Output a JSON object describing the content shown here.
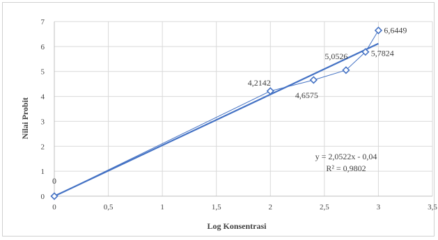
{
  "chart_data": {
    "type": "scatter",
    "title": "",
    "xlabel": "Log Konsentrasi",
    "ylabel": "Nilai Probit",
    "xlim": [
      0,
      3.5
    ],
    "ylim": [
      0,
      7
    ],
    "x_ticks": [
      {
        "value": 0,
        "label": "0"
      },
      {
        "value": 0.5,
        "label": "0,5"
      },
      {
        "value": 1,
        "label": "1"
      },
      {
        "value": 1.5,
        "label": "1,5"
      },
      {
        "value": 2,
        "label": "2"
      },
      {
        "value": 2.5,
        "label": "2,5"
      },
      {
        "value": 3,
        "label": "3"
      },
      {
        "value": 3.5,
        "label": "3,5"
      }
    ],
    "y_ticks": [
      {
        "value": 0,
        "label": "0"
      },
      {
        "value": 1,
        "label": "1"
      },
      {
        "value": 2,
        "label": "2"
      },
      {
        "value": 3,
        "label": "3"
      },
      {
        "value": 4,
        "label": "4"
      },
      {
        "value": 5,
        "label": "5"
      },
      {
        "value": 6,
        "label": "6"
      },
      {
        "value": 7,
        "label": "7"
      }
    ],
    "grid": true,
    "points": [
      {
        "x": 0,
        "y": 0,
        "label": "0"
      },
      {
        "x": 2,
        "y": 4.2142,
        "label": "4,2142"
      },
      {
        "x": 2.4,
        "y": 4.6575,
        "label": "4,6575"
      },
      {
        "x": 2.7,
        "y": 5.0526,
        "label": "5,0526"
      },
      {
        "x": 2.88,
        "y": 5.7824,
        "label": "5,7824"
      },
      {
        "x": 3,
        "y": 6.6449,
        "label": "6,6449"
      }
    ],
    "trendline": {
      "slope": 2.0522,
      "intercept": -0.04
    },
    "equation": "y = 2,0522x - 0,04",
    "r_squared": "R² = 0,9802",
    "colors": {
      "series": "#4472c4",
      "grid": "#d9d9d9",
      "axis": "#bfbfbf",
      "text": "#404040"
    }
  }
}
